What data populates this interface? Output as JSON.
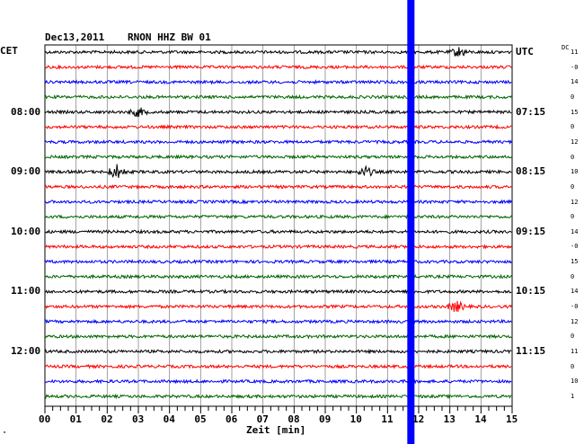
{
  "header": {
    "date": "Dec13,2011",
    "station": "RNON HHZ BW 01",
    "left_zone": "CET",
    "right_zone": "UTC",
    "dc_label": "DC"
  },
  "xaxis_label": "Zeit [min]",
  "footnote": "\"",
  "colors": {
    "trace_cycle": [
      "#000000",
      "#ff0000",
      "#0000ff",
      "#006400"
    ],
    "marker": "#0000ff",
    "grid": "#888888"
  },
  "chart_data": {
    "type": "line",
    "subtype": "helicorder",
    "title": "Dec13,2011   RNON HHZ BW 01",
    "xlabel": "Zeit [min]",
    "xlim": [
      0,
      15
    ],
    "x_ticks": [
      "00",
      "01",
      "02",
      "03",
      "04",
      "05",
      "06",
      "07",
      "08",
      "09",
      "10",
      "11",
      "12",
      "13",
      "14",
      "15"
    ],
    "rows": 24,
    "row_minutes": 15,
    "left_time_labels": [
      {
        "row": 4,
        "label": "08:00"
      },
      {
        "row": 8,
        "label": "09:00"
      },
      {
        "row": 12,
        "label": "10:00"
      },
      {
        "row": 16,
        "label": "11:00"
      },
      {
        "row": 20,
        "label": "12:00"
      }
    ],
    "right_time_labels": [
      {
        "row": 0,
        "label": "UTC"
      },
      {
        "row": 4,
        "label": "07:15"
      },
      {
        "row": 8,
        "label": "08:15"
      },
      {
        "row": 12,
        "label": "09:15"
      },
      {
        "row": 16,
        "label": "10:15"
      },
      {
        "row": 20,
        "label": "11:15"
      }
    ],
    "dc_offsets": [
      "11",
      "-0",
      "14",
      "0",
      "15",
      "0",
      "12",
      "0",
      "10",
      "0",
      "12",
      "0",
      "14",
      "-0",
      "15",
      "0",
      "14",
      "-0",
      "12",
      "0",
      "11",
      "0",
      "10",
      "1"
    ],
    "marker_minute": 11.75,
    "events": [
      {
        "row": 0,
        "minute": 13.3,
        "amplitude": 1.6
      },
      {
        "row": 4,
        "minute": 3.0,
        "amplitude": 1.4
      },
      {
        "row": 8,
        "minute": 2.3,
        "amplitude": 2.4
      },
      {
        "row": 8,
        "minute": 10.3,
        "amplitude": 1.6
      },
      {
        "row": 17,
        "minute": 13.2,
        "amplitude": 1.8
      }
    ]
  }
}
